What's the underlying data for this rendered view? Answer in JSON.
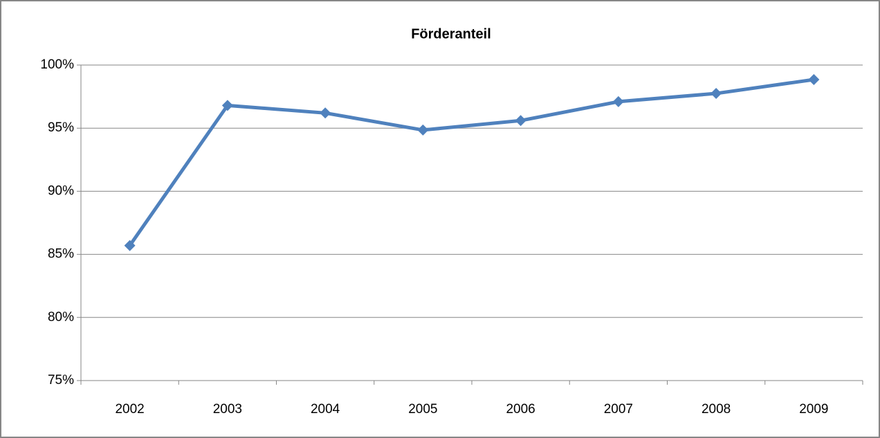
{
  "chart_data": {
    "type": "line",
    "title": "Förderanteil",
    "categories": [
      "2002",
      "2003",
      "2004",
      "2005",
      "2006",
      "2007",
      "2008",
      "2009"
    ],
    "series": [
      {
        "name": "Förderanteil",
        "color": "#4f81bd",
        "values": [
          85.7,
          96.8,
          96.2,
          94.85,
          95.6,
          97.1,
          97.75,
          98.85
        ]
      }
    ],
    "ylim": [
      75,
      100
    ],
    "yticks": [
      {
        "value": 75,
        "label": "75%"
      },
      {
        "value": 80,
        "label": "80%"
      },
      {
        "value": 85,
        "label": "85%"
      },
      {
        "value": 90,
        "label": "90%"
      },
      {
        "value": 95,
        "label": "95%"
      },
      {
        "value": 100,
        "label": "100%"
      }
    ],
    "grid": true
  }
}
